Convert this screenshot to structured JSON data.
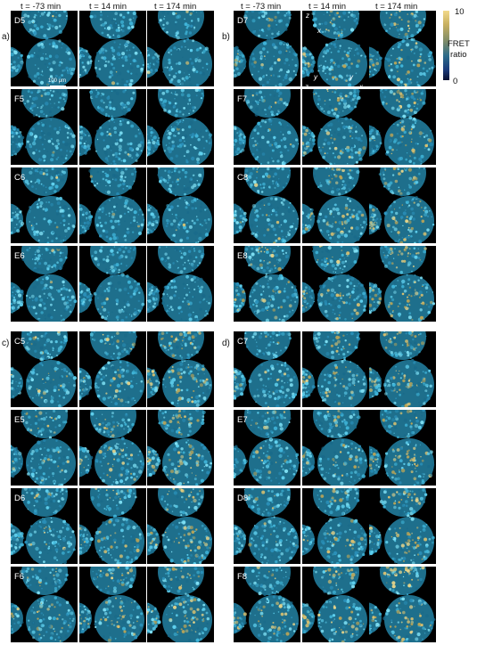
{
  "header_left": [
    "t = -73 min",
    "t = 14 min",
    "t = 174 min"
  ],
  "header_right": [
    "t = -73 min",
    "t = 14 min",
    "t = 174 min"
  ],
  "panels": [
    {
      "letter": "a)",
      "wells": [
        "D5",
        "F5",
        "C6",
        "E6"
      ],
      "tone": "cool"
    },
    {
      "letter": "b)",
      "wells": [
        "D7",
        "F7",
        "C8",
        "E8"
      ],
      "tone": "warm"
    },
    {
      "letter": "c)",
      "wells": [
        "C5",
        "E5",
        "D6",
        "F6"
      ],
      "tone": "warm"
    },
    {
      "letter": "d)",
      "wells": [
        "C7",
        "E7",
        "D8",
        "F8"
      ],
      "tone": "warm"
    }
  ],
  "scale_bar": "100 μm",
  "colorbar": {
    "max": "10",
    "min": "0",
    "label_line1": "FRET",
    "label_line2": "ratio",
    "colors": [
      "#f2d98a",
      "#c8b060",
      "#7a8a6a",
      "#2c6c8a",
      "#1a3a7a",
      "#0a1030"
    ]
  },
  "axes": {
    "z_top": "z",
    "x_top": "x",
    "y_left": "y",
    "z_left": "z",
    "y_right": "y",
    "x_right": "x"
  }
}
